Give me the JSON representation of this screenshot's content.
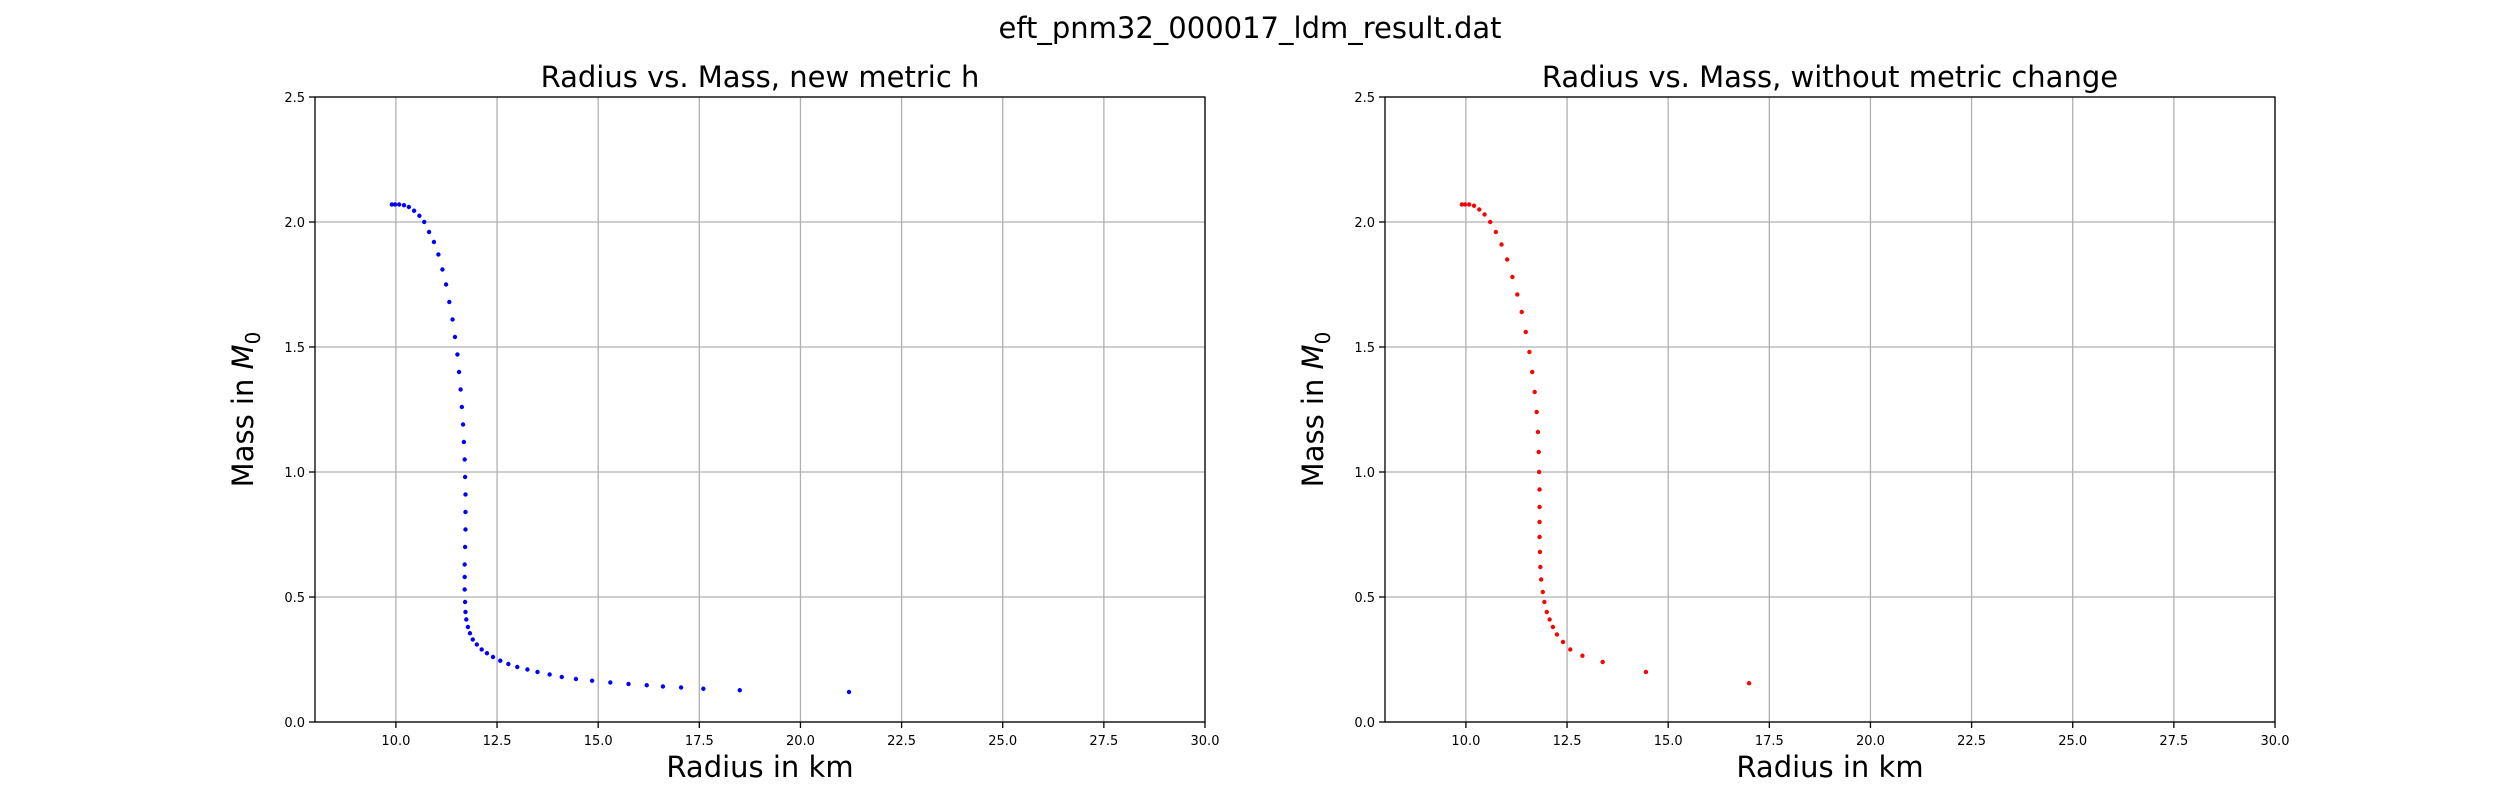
{
  "figure": {
    "suptitle": "eft_pnm32_000017_ldm_result.dat"
  },
  "chart_data": [
    {
      "type": "scatter",
      "title": "Radius vs. Mass, new metric h",
      "xlabel": "Radius in km",
      "ylabel_prefix": "Mass in ",
      "ylabel_symbol": "M",
      "ylabel_subscript": "0",
      "xlim": [
        8,
        30
      ],
      "ylim": [
        0,
        2.5
      ],
      "xticks": [
        "10.0",
        "12.5",
        "15.0",
        "17.5",
        "20.0",
        "22.5",
        "25.0",
        "27.5",
        "30.0"
      ],
      "yticks": [
        "0.0",
        "0.5",
        "1.0",
        "1.5",
        "2.0",
        "2.5"
      ],
      "grid": true,
      "series": [
        {
          "color": "#0000ff",
          "x": [
            9.9,
            9.98,
            10.08,
            10.2,
            10.32,
            10.45,
            10.58,
            10.7,
            10.82,
            10.94,
            11.05,
            11.15,
            11.24,
            11.32,
            11.4,
            11.46,
            11.52,
            11.56,
            11.6,
            11.63,
            11.66,
            11.68,
            11.7,
            11.71,
            11.72,
            11.72,
            11.72,
            11.71,
            11.7,
            11.7,
            11.7,
            11.71,
            11.72,
            11.74,
            11.78,
            11.83,
            11.9,
            12.0,
            12.12,
            12.25,
            12.4,
            12.58,
            12.78,
            13.0,
            13.25,
            13.5,
            13.8,
            14.1,
            14.45,
            14.85,
            15.3,
            15.75,
            16.2,
            16.6,
            17.05,
            17.6,
            18.5,
            21.2
          ],
          "y": [
            2.07,
            2.07,
            2.07,
            2.067,
            2.06,
            2.045,
            2.025,
            2.0,
            1.96,
            1.92,
            1.87,
            1.81,
            1.75,
            1.68,
            1.61,
            1.54,
            1.47,
            1.4,
            1.33,
            1.26,
            1.19,
            1.12,
            1.05,
            0.98,
            0.91,
            0.84,
            0.77,
            0.7,
            0.63,
            0.58,
            0.53,
            0.48,
            0.44,
            0.41,
            0.38,
            0.355,
            0.33,
            0.31,
            0.29,
            0.275,
            0.26,
            0.245,
            0.232,
            0.22,
            0.21,
            0.2,
            0.19,
            0.18,
            0.172,
            0.165,
            0.158,
            0.152,
            0.147,
            0.142,
            0.138,
            0.133,
            0.127,
            0.12
          ]
        }
      ]
    },
    {
      "type": "scatter",
      "title": "Radius vs. Mass, without metric change",
      "xlabel": "Radius in km",
      "ylabel_prefix": "Mass in ",
      "ylabel_symbol": "M",
      "ylabel_subscript": "0",
      "xlim": [
        8,
        30
      ],
      "ylim": [
        0,
        2.5
      ],
      "xticks": [
        "10.0",
        "12.5",
        "15.0",
        "17.5",
        "20.0",
        "22.5",
        "25.0",
        "27.5",
        "30.0"
      ],
      "yticks": [
        "0.0",
        "0.5",
        "1.0",
        "1.5",
        "2.0",
        "2.5"
      ],
      "grid": true,
      "series": [
        {
          "color": "#ff0000",
          "x": [
            9.9,
            9.98,
            10.08,
            10.2,
            10.33,
            10.46,
            10.6,
            10.74,
            10.88,
            11.02,
            11.15,
            11.27,
            11.38,
            11.48,
            11.57,
            11.64,
            11.7,
            11.75,
            11.78,
            11.8,
            11.81,
            11.82,
            11.82,
            11.82,
            11.82,
            11.83,
            11.84,
            11.86,
            11.9,
            11.94,
            12.0,
            12.07,
            12.15,
            12.25,
            12.4,
            12.58,
            12.88,
            13.38,
            14.45,
            17.0
          ],
          "y": [
            2.07,
            2.07,
            2.07,
            2.065,
            2.05,
            2.03,
            2.0,
            1.96,
            1.91,
            1.85,
            1.78,
            1.71,
            1.64,
            1.56,
            1.48,
            1.4,
            1.32,
            1.24,
            1.16,
            1.08,
            1.0,
            0.93,
            0.86,
            0.8,
            0.74,
            0.68,
            0.62,
            0.57,
            0.52,
            0.48,
            0.44,
            0.41,
            0.38,
            0.35,
            0.32,
            0.29,
            0.265,
            0.24,
            0.2,
            0.155
          ]
        }
      ]
    }
  ]
}
